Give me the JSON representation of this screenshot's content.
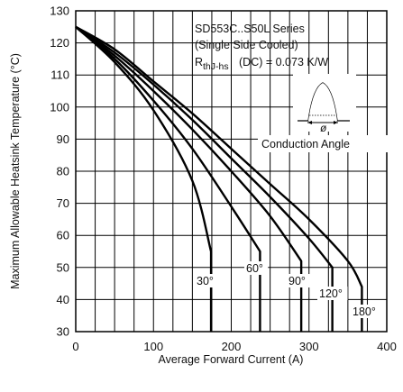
{
  "chart_data": {
    "type": "line",
    "xlabel": "Average Forward Current (A)",
    "ylabel": "Maximum Allowable Heatsink Temperature (°C)",
    "xlim": [
      0,
      400
    ],
    "ylim": [
      30,
      130
    ],
    "xticks": [
      0,
      100,
      200,
      300,
      400
    ],
    "yticks": [
      30,
      40,
      50,
      60,
      70,
      80,
      90,
      100,
      110,
      120,
      130
    ],
    "grid": true,
    "annotations": [
      "SD553C..S50L Series",
      "(Single Side Cooled)",
      "R",
      "thJ-hs",
      "(DC) = 0.073 K/W",
      "Conduction Angle",
      "ø"
    ],
    "series": [
      {
        "name": "30°",
        "label": "30°",
        "x": [
          0,
          50,
          100,
          150,
          174,
          174
        ],
        "y": [
          125,
          114,
          99,
          77,
          55,
          30
        ]
      },
      {
        "name": "60°",
        "label": "60°",
        "x": [
          0,
          50,
          100,
          150,
          200,
          237,
          237
        ],
        "y": [
          125,
          115,
          102,
          87,
          69,
          55,
          30
        ]
      },
      {
        "name": "90°",
        "label": "90°",
        "x": [
          0,
          50,
          100,
          150,
          200,
          250,
          290,
          290
        ],
        "y": [
          125,
          116,
          105,
          93,
          80,
          66,
          52,
          30
        ]
      },
      {
        "name": "120°",
        "label": "120°",
        "x": [
          0,
          50,
          100,
          150,
          200,
          250,
          300,
          330,
          330
        ],
        "y": [
          125,
          117,
          107,
          96,
          84,
          72,
          59,
          50,
          30
        ]
      },
      {
        "name": "180°",
        "label": "180°",
        "x": [
          0,
          50,
          100,
          150,
          200,
          250,
          300,
          350,
          368,
          368
        ],
        "y": [
          125,
          118,
          108,
          98,
          87,
          76,
          65,
          52,
          44,
          30
        ]
      }
    ]
  }
}
